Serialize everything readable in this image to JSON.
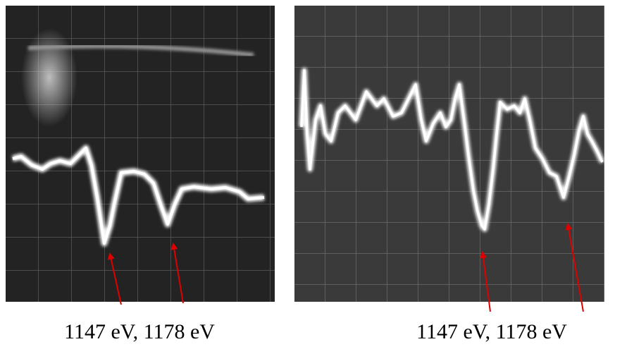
{
  "panels": [
    {
      "caption": "1147 eV, 1178 eV"
    },
    {
      "caption": "1147 eV, 1178 eV"
    }
  ]
}
